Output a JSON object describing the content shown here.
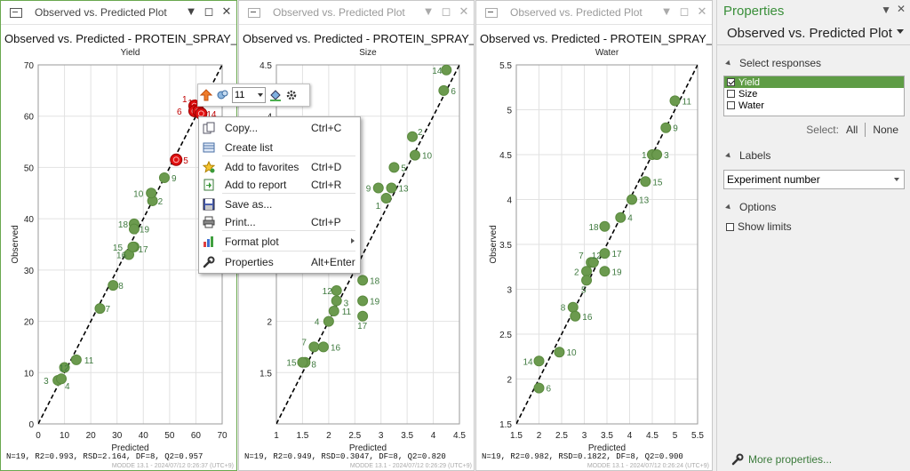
{
  "panels": [
    {
      "window_title": "Observed vs. Predicted Plot",
      "plot_title": "Observed vs. Predicted - PROTEIN_SPRAY_DRYING",
      "response": "Yield",
      "xlabel": "Predicted",
      "ylabel": "Observed",
      "stats": "N=19, R2=0.993, RSD=2.164, DF=8, Q2=0.957",
      "footer": "MODDE 13.1 - 2024/07/12 0:26:37 (UTC+9)"
    },
    {
      "window_title": "Observed vs. Predicted Plot",
      "plot_title": "Observed vs. Predicted - PROTEIN_SPRAY_DRYING",
      "response": "Size",
      "xlabel": "Predicted",
      "ylabel": "",
      "stats": "N=19, R2=0.949, RSD=0.3047, DF=8, Q2=0.820",
      "footer": "MODDE 13.1 - 2024/07/12 0:26:29 (UTC+9)"
    },
    {
      "window_title": "Observed vs. Predicted Plot",
      "plot_title": "Observed vs. Predicted - PROTEIN_SPRAY_DRYING",
      "response": "Water",
      "xlabel": "Predicted",
      "ylabel": "Observed",
      "stats": "N=19, R2=0.982, RSD=0.1822, DF=8, Q2=0.900",
      "footer": "MODDE 13.1 - 2024/07/12 0:26:24 (UTC+9)"
    }
  ],
  "chart_data": [
    {
      "type": "scatter",
      "title": "Yield",
      "xlabel": "Predicted",
      "ylabel": "Observed",
      "xlim": [
        0,
        70
      ],
      "ylim": [
        0,
        70
      ],
      "xticks": [
        0,
        10,
        20,
        30,
        40,
        50,
        60,
        70
      ],
      "yticks": [
        0,
        10,
        20,
        30,
        40,
        50,
        60,
        70
      ],
      "grid": true,
      "reference_line": "y=x",
      "points": [
        {
          "label": "1",
          "x": 59.5,
          "y": 62.0,
          "highlight": true
        },
        {
          "label": "2",
          "x": 43.5,
          "y": 43.5,
          "highlight": false
        },
        {
          "label": "3",
          "x": 7.5,
          "y": 8.5,
          "highlight": false
        },
        {
          "label": "4",
          "x": 8.8,
          "y": 8.8,
          "highlight": false
        },
        {
          "label": "5",
          "x": 52.5,
          "y": 51.5,
          "highlight": true
        },
        {
          "label": "6",
          "x": 59.5,
          "y": 61.0,
          "highlight": true
        },
        {
          "label": "7",
          "x": 23.5,
          "y": 22.5,
          "highlight": false
        },
        {
          "label": "8",
          "x": 28.5,
          "y": 27.0,
          "highlight": false
        },
        {
          "label": "9",
          "x": 48.0,
          "y": 48.0,
          "highlight": false
        },
        {
          "label": "10",
          "x": 43.0,
          "y": 45.0,
          "highlight": false
        },
        {
          "label": "11",
          "x": 14.5,
          "y": 12.5,
          "highlight": false
        },
        {
          "label": "12",
          "x": 10.0,
          "y": 11.0,
          "highlight": false
        },
        {
          "label": "13",
          "x": 61.0,
          "y": 61.0,
          "highlight": true
        },
        {
          "label": "14",
          "x": 62.0,
          "y": 60.5,
          "highlight": true
        },
        {
          "label": "15",
          "x": 36.5,
          "y": 34.5,
          "highlight": false
        },
        {
          "label": "16",
          "x": 34.5,
          "y": 33.0,
          "highlight": false
        },
        {
          "label": "17",
          "x": 36.0,
          "y": 34.5,
          "highlight": false
        },
        {
          "label": "18",
          "x": 36.5,
          "y": 39.0,
          "highlight": false
        },
        {
          "label": "19",
          "x": 36.5,
          "y": 38.0,
          "highlight": false
        }
      ]
    },
    {
      "type": "scatter",
      "title": "Size",
      "xlabel": "Predicted",
      "ylabel": "",
      "xlim": [
        1,
        4.5
      ],
      "ylim": [
        1,
        4.5
      ],
      "xticks": [
        1,
        1.5,
        2,
        2.5,
        3,
        3.5,
        4,
        4.5
      ],
      "yticks": [
        1.5,
        2,
        4,
        4.5
      ],
      "grid": true,
      "reference_line": "y=x",
      "points": [
        {
          "label": "1",
          "x": 3.1,
          "y": 3.2,
          "highlight": false
        },
        {
          "label": "2",
          "x": 3.6,
          "y": 3.8,
          "highlight": false
        },
        {
          "label": "3",
          "x": 2.15,
          "y": 2.2,
          "highlight": false
        },
        {
          "label": "4",
          "x": 2.0,
          "y": 2.0,
          "highlight": false
        },
        {
          "label": "5",
          "x": 3.25,
          "y": 3.5,
          "highlight": false
        },
        {
          "label": "6",
          "x": 4.2,
          "y": 4.25,
          "highlight": false
        },
        {
          "label": "7",
          "x": 1.72,
          "y": 1.75,
          "highlight": false
        },
        {
          "label": "8",
          "x": 1.55,
          "y": 1.6,
          "highlight": false
        },
        {
          "label": "9",
          "x": 2.95,
          "y": 3.3,
          "highlight": false
        },
        {
          "label": "10",
          "x": 3.65,
          "y": 3.62,
          "highlight": false
        },
        {
          "label": "11",
          "x": 2.1,
          "y": 2.1,
          "highlight": false
        },
        {
          "label": "12",
          "x": 2.15,
          "y": 2.3,
          "highlight": false
        },
        {
          "label": "13",
          "x": 3.2,
          "y": 3.3,
          "highlight": false
        },
        {
          "label": "14",
          "x": 4.25,
          "y": 4.45,
          "highlight": false
        },
        {
          "label": "15",
          "x": 1.5,
          "y": 1.6,
          "highlight": false
        },
        {
          "label": "16",
          "x": 1.9,
          "y": 1.75,
          "highlight": false
        },
        {
          "label": "17",
          "x": 2.65,
          "y": 2.05,
          "highlight": false
        },
        {
          "label": "18",
          "x": 2.65,
          "y": 2.4,
          "highlight": false
        },
        {
          "label": "19",
          "x": 2.65,
          "y": 2.2,
          "highlight": false
        }
      ]
    },
    {
      "type": "scatter",
      "title": "Water",
      "xlabel": "Predicted",
      "ylabel": "Observed",
      "xlim": [
        1.5,
        5.5
      ],
      "ylim": [
        1.5,
        5.5
      ],
      "xticks": [
        1.5,
        2,
        2.5,
        3,
        3.5,
        4,
        4.5,
        5,
        5.5
      ],
      "yticks": [
        1.5,
        2,
        2.5,
        3,
        3.5,
        4,
        4.5,
        5,
        5.5
      ],
      "grid": true,
      "reference_line": "y=x",
      "points": [
        {
          "label": "1",
          "x": 4.5,
          "y": 4.5,
          "highlight": false
        },
        {
          "label": "2",
          "x": 3.05,
          "y": 3.2,
          "highlight": false
        },
        {
          "label": "3",
          "x": 4.6,
          "y": 4.5,
          "highlight": false
        },
        {
          "label": "4",
          "x": 3.8,
          "y": 3.8,
          "highlight": false
        },
        {
          "label": "5",
          "x": 3.05,
          "y": 3.1,
          "highlight": false
        },
        {
          "label": "6",
          "x": 2.0,
          "y": 1.9,
          "highlight": false
        },
        {
          "label": "7",
          "x": 3.15,
          "y": 3.3,
          "highlight": false
        },
        {
          "label": "8",
          "x": 2.75,
          "y": 2.8,
          "highlight": false
        },
        {
          "label": "9",
          "x": 4.8,
          "y": 4.8,
          "highlight": false
        },
        {
          "label": "10",
          "x": 2.45,
          "y": 2.3,
          "highlight": false
        },
        {
          "label": "11",
          "x": 5.0,
          "y": 5.1,
          "highlight": false
        },
        {
          "label": "12",
          "x": 3.2,
          "y": 3.3,
          "highlight": false
        },
        {
          "label": "13",
          "x": 4.05,
          "y": 4.0,
          "highlight": false
        },
        {
          "label": "14",
          "x": 2.0,
          "y": 2.2,
          "highlight": false
        },
        {
          "label": "15",
          "x": 4.35,
          "y": 4.2,
          "highlight": false
        },
        {
          "label": "16",
          "x": 2.8,
          "y": 2.7,
          "highlight": false
        },
        {
          "label": "17",
          "x": 3.45,
          "y": 3.4,
          "highlight": false
        },
        {
          "label": "18",
          "x": 3.45,
          "y": 3.7,
          "highlight": false
        },
        {
          "label": "19",
          "x": 3.45,
          "y": 3.2,
          "highlight": false
        }
      ]
    }
  ],
  "colors": {
    "point": "#6b9a4e",
    "point_stroke": "#5a8a3e",
    "label": "#3f7a3f",
    "highlight": "#e01010",
    "accent": "#3a8f3a"
  },
  "toolbar": {
    "marker_size": "11"
  },
  "context_menu": [
    {
      "label": "Copy...",
      "shortcut": "Ctrl+C",
      "icon": "copy-icon"
    },
    {
      "label": "Create list",
      "shortcut": "",
      "icon": "list-icon"
    },
    {
      "label": "Add to favorites",
      "shortcut": "Ctrl+D",
      "icon": "star-icon"
    },
    {
      "label": "Add to report",
      "shortcut": "Ctrl+R",
      "icon": "report-icon"
    },
    {
      "label": "Save as...",
      "shortcut": "",
      "icon": "save-icon"
    },
    {
      "label": "Print...",
      "shortcut": "Ctrl+P",
      "icon": "print-icon"
    },
    {
      "label": "Format plot",
      "shortcut": "",
      "icon": "format-icon"
    },
    {
      "label": "Properties",
      "shortcut": "Alt+Enter",
      "icon": "wrench-icon"
    }
  ],
  "properties": {
    "header": "Properties",
    "plot_selector": "Observed vs. Predicted Plot",
    "select_responses_label": "Select responses",
    "responses": [
      {
        "label": "Yield",
        "checked": true,
        "selected": true
      },
      {
        "label": "Size",
        "checked": false,
        "selected": false
      },
      {
        "label": "Water",
        "checked": false,
        "selected": false
      }
    ],
    "select_label": "Select:",
    "all_label": "All",
    "none_label": "None",
    "labels_section": "Labels",
    "labels_value": "Experiment number",
    "options_section": "Options",
    "show_limits_label": "Show limits",
    "more_properties": "More properties..."
  }
}
